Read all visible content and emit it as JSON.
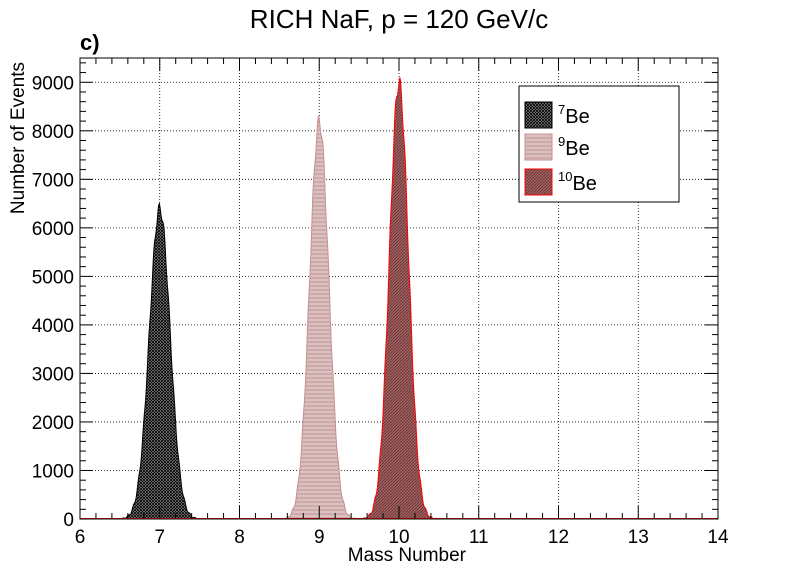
{
  "chart_data": {
    "type": "area",
    "title": "RICH NaF, p = 120 GeV/c",
    "panel_label": "c)",
    "xlabel": "Mass Number",
    "ylabel": "Number of Events",
    "xlim": [
      6,
      14
    ],
    "ylim": [
      0,
      9500
    ],
    "xticks": [
      6,
      7,
      8,
      9,
      10,
      11,
      12,
      13,
      14
    ],
    "yticks": [
      0,
      1000,
      2000,
      3000,
      4000,
      5000,
      6000,
      7000,
      8000,
      9000
    ],
    "grid": true,
    "legend_position": "top-right",
    "series": [
      {
        "name": "Be",
        "superscript": "7",
        "color": "#000000",
        "fill": "#7a7a7a",
        "center": 7.0,
        "peak": 6400,
        "sigma": 0.13
      },
      {
        "name": "Be",
        "superscript": "9",
        "color": "#c98f8f",
        "fill": "#d9b3b3",
        "center": 9.0,
        "peak": 8200,
        "sigma": 0.12
      },
      {
        "name": "Be",
        "superscript": "10",
        "color": "#ff0000",
        "fill": "#9a5656",
        "center": 10.0,
        "peak": 9000,
        "sigma": 0.12
      }
    ]
  }
}
